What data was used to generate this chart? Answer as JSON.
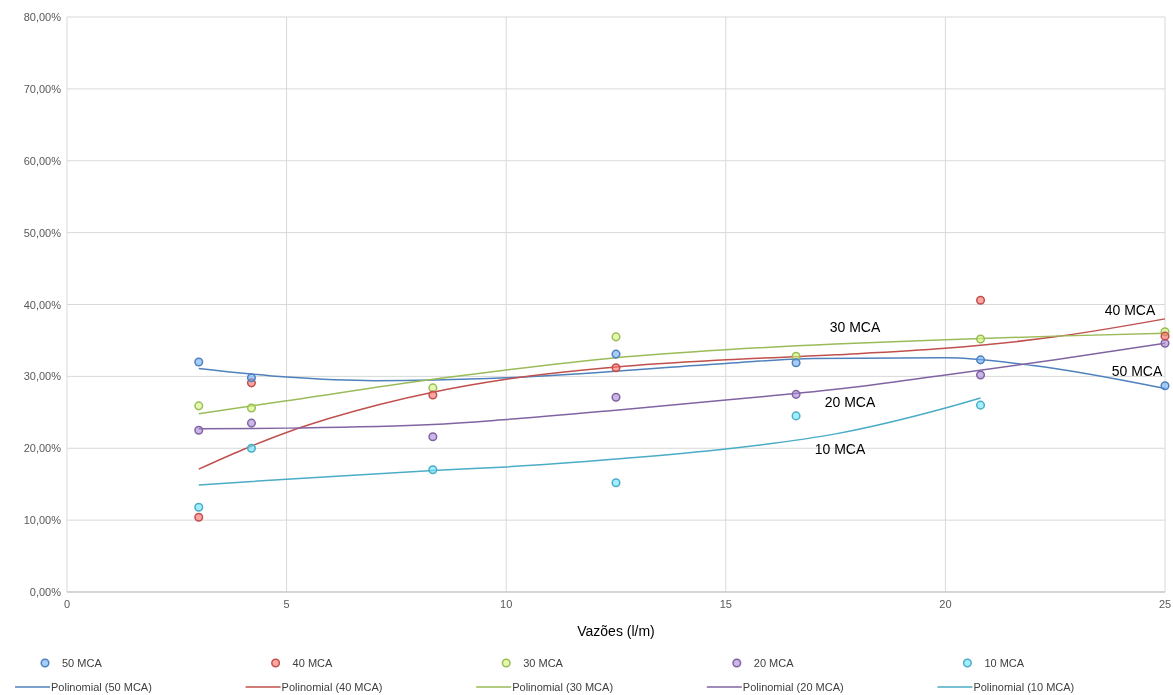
{
  "chart_data": {
    "type": "scatter",
    "xlabel": "Vazões (l/m)",
    "xlim": [
      0,
      25
    ],
    "xticks": [
      0,
      5,
      10,
      15,
      20,
      25
    ],
    "ylim": [
      0,
      80
    ],
    "yticks": [
      {
        "value": 0,
        "label": "0,00%"
      },
      {
        "value": 10,
        "label": "10,00%"
      },
      {
        "value": 20,
        "label": "20,00%"
      },
      {
        "value": 30,
        "label": "30,00%"
      },
      {
        "value": 40,
        "label": "40,00%"
      },
      {
        "value": 50,
        "label": "50,00%"
      },
      {
        "value": 60,
        "label": "60,00%"
      },
      {
        "value": 70,
        "label": "70,00%"
      },
      {
        "value": 80,
        "label": "80,00%"
      }
    ],
    "grid": true,
    "legend": "bottom",
    "series": [
      {
        "name": "50 MCA",
        "marker": "circle",
        "color": "#4f81bd",
        "x": [
          3,
          4.2,
          12.5,
          16.6,
          20.8,
          25
        ],
        "values": [
          32.0,
          29.8,
          33.1,
          31.9,
          32.3,
          28.7
        ]
      },
      {
        "name": "40 MCA",
        "marker": "circle",
        "color": "#c0504d",
        "x": [
          3,
          4.2,
          8.33,
          12.5,
          20.8,
          25
        ],
        "values": [
          10.4,
          29.1,
          27.4,
          31.2,
          40.6,
          35.6
        ]
      },
      {
        "name": "30 MCA",
        "marker": "circle",
        "color": "#9bbb59",
        "x": [
          3,
          4.2,
          8.33,
          12.5,
          16.6,
          20.8,
          25
        ],
        "values": [
          25.9,
          25.6,
          28.4,
          35.5,
          32.8,
          35.2,
          36.2
        ]
      },
      {
        "name": "20 MCA",
        "marker": "circle",
        "color": "#8064a2",
        "x": [
          3,
          4.2,
          8.33,
          12.5,
          16.6,
          20.8,
          25
        ],
        "values": [
          22.5,
          23.5,
          21.6,
          27.1,
          27.5,
          30.2,
          34.6
        ]
      },
      {
        "name": "10 MCA",
        "marker": "circle",
        "color": "#4bacc6",
        "x": [
          3,
          4.2,
          8.33,
          12.5,
          16.6,
          20.8
        ],
        "values": [
          11.8,
          20.0,
          17.0,
          15.2,
          24.5,
          26.0
        ]
      },
      {
        "name": "Polinomial (50 MCA)",
        "type": "line",
        "marker": "none",
        "color": "#4f81bd",
        "x": [
          3,
          5,
          7,
          10,
          15,
          17,
          20,
          22,
          25
        ],
        "values": [
          31.1,
          29.9,
          29.4,
          29.8,
          31.8,
          32.5,
          32.6,
          31.5,
          28.3
        ]
      },
      {
        "name": "Polinomial (40 MCA)",
        "type": "line",
        "marker": "none",
        "color": "#c0504d",
        "x": [
          3,
          4,
          5,
          6,
          8.33,
          10,
          12.5,
          15,
          17.5,
          20,
          22.5,
          25
        ],
        "values": [
          17.1,
          19.8,
          22.2,
          24.2,
          27.8,
          29.6,
          31.3,
          32.3,
          33.0,
          33.9,
          35.5,
          38.0
        ]
      },
      {
        "name": "Polinomial (30 MCA)",
        "type": "line",
        "marker": "none",
        "color": "#9bbb59",
        "x": [
          3,
          5,
          8.33,
          10,
          12.5,
          15,
          17.5,
          20,
          22.5,
          25
        ],
        "values": [
          24.8,
          26.6,
          29.6,
          30.9,
          32.6,
          33.7,
          34.5,
          35.1,
          35.6,
          36.0
        ]
      },
      {
        "name": "Polinomial (20 MCA)",
        "type": "line",
        "marker": "none",
        "color": "#8064a2",
        "x": [
          3,
          5,
          8.33,
          10,
          12.5,
          15,
          17.5,
          20,
          22.5,
          25
        ],
        "values": [
          22.7,
          22.8,
          23.3,
          24.0,
          25.3,
          26.7,
          28.2,
          30.2,
          32.3,
          34.6
        ]
      },
      {
        "name": "Polinomial (10 MCA)",
        "type": "line",
        "marker": "none",
        "color": "#4bacc6",
        "x": [
          3,
          5,
          8.33,
          10,
          12.5,
          15,
          17.5,
          20,
          20.8
        ],
        "values": [
          14.9,
          15.7,
          16.9,
          17.4,
          18.5,
          19.9,
          22.0,
          25.6,
          27.0
        ]
      }
    ],
    "annotations": [
      "30 MCA",
      "40 MCA",
      "50 MCA",
      "20 MCA",
      "10 MCA"
    ]
  }
}
